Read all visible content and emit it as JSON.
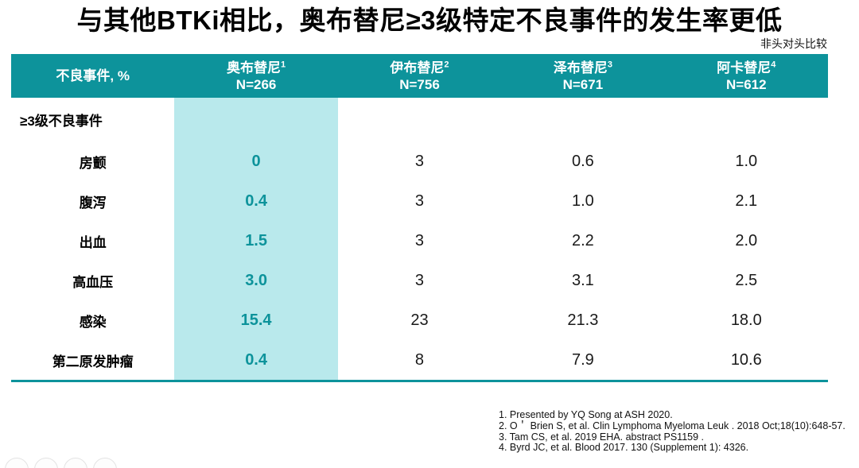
{
  "title": "与其他BTKi相比，奥布替尼≥3级特定不良事件的发生率更低",
  "note": "非头对头比较",
  "colors": {
    "teal": "#0d939b",
    "highlight": "#b9e9ec"
  },
  "table": {
    "corner_header": "不良事件, %",
    "drug_columns": [
      {
        "name": "奥布替尼",
        "ref_sup": "1",
        "n_label": "N=266",
        "highlighted": true
      },
      {
        "name": "伊布替尼",
        "ref_sup": "2",
        "n_label": "N=756",
        "highlighted": false
      },
      {
        "name": "泽布替尼",
        "ref_sup": "3",
        "n_label": "N=671",
        "highlighted": false
      },
      {
        "name": "阿卡替尼",
        "ref_sup": "4",
        "n_label": "N=612",
        "highlighted": false
      }
    ],
    "section_header": "≥3级不良事件",
    "rows": [
      {
        "label": "房颤",
        "values": [
          "0",
          "3",
          "0.6",
          "1.0"
        ]
      },
      {
        "label": "腹泻",
        "values": [
          "0.4",
          "3",
          "1.0",
          "2.1"
        ]
      },
      {
        "label": "出血",
        "values": [
          "1.5",
          "3",
          "2.2",
          "2.0"
        ]
      },
      {
        "label": "高血压",
        "values": [
          "3.0",
          "3",
          "3.1",
          "2.5"
        ]
      },
      {
        "label": "感染",
        "values": [
          "15.4",
          "23",
          "21.3",
          "18.0"
        ]
      },
      {
        "label": "第二原发肿瘤",
        "values": [
          "0.4",
          "8",
          "7.9",
          "10.6"
        ]
      }
    ]
  },
  "references": [
    "1. Presented by YQ Song at ASH 2020.",
    "2. O＇ Brien S, et al. Clin Lymphoma Myeloma Leuk . 2018 Oct;18(10):648-57.",
    "3. Tam CS, et al. 2019 EHA. abstract PS1159 .",
    "4. Byrd JC, et al. Blood 2017. 130 (Supplement 1): 4326."
  ],
  "watermark_count": 4
}
